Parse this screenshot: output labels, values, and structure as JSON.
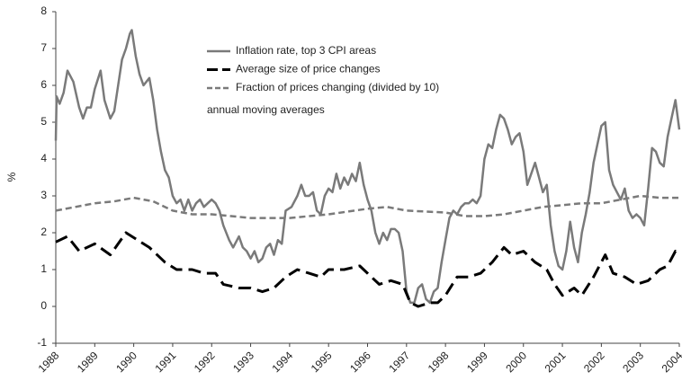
{
  "chart_data": {
    "type": "line",
    "ylabel": "%",
    "annotation": "annual moving averages",
    "xlim": [
      1988,
      2004
    ],
    "ylim": [
      -1,
      8
    ],
    "xticks": [
      1988,
      1989,
      1990,
      1991,
      1992,
      1993,
      1994,
      1995,
      1996,
      1997,
      1998,
      1999,
      2000,
      2001,
      2002,
      2003,
      2004
    ],
    "yticks": [
      -1,
      0,
      1,
      2,
      3,
      4,
      5,
      6,
      7,
      8
    ],
    "series": [
      {
        "name": "Inflation rate, top 3 CPI areas",
        "color": "#7a7a7a",
        "dash": "solid",
        "x": [
          1988.0,
          1988.02,
          1988.1,
          1988.2,
          1988.3,
          1988.45,
          1988.6,
          1988.7,
          1988.8,
          1988.9,
          1989.0,
          1989.15,
          1989.25,
          1989.4,
          1989.5,
          1989.6,
          1989.7,
          1989.8,
          1989.9,
          1989.95,
          1990.05,
          1990.15,
          1990.25,
          1990.4,
          1990.5,
          1990.6,
          1990.7,
          1990.8,
          1990.9,
          1991.0,
          1991.1,
          1991.2,
          1991.3,
          1991.4,
          1991.5,
          1991.6,
          1991.7,
          1991.8,
          1991.9,
          1992.0,
          1992.1,
          1992.2,
          1992.3,
          1992.45,
          1992.55,
          1992.7,
          1992.8,
          1992.9,
          1993.0,
          1993.1,
          1993.2,
          1993.3,
          1993.4,
          1993.5,
          1993.6,
          1993.7,
          1993.8,
          1993.9,
          1994.05,
          1994.2,
          1994.3,
          1994.4,
          1994.5,
          1994.6,
          1994.7,
          1994.8,
          1994.9,
          1995.0,
          1995.1,
          1995.2,
          1995.3,
          1995.4,
          1995.5,
          1995.6,
          1995.7,
          1995.8,
          1995.9,
          1996.0,
          1996.1,
          1996.2,
          1996.3,
          1996.4,
          1996.5,
          1996.6,
          1996.7,
          1996.8,
          1996.9,
          1997.0,
          1997.1,
          1997.2,
          1997.3,
          1997.4,
          1997.5,
          1997.6,
          1997.7,
          1997.8,
          1997.9,
          1998.0,
          1998.1,
          1998.2,
          1998.3,
          1998.4,
          1998.5,
          1998.6,
          1998.7,
          1998.8,
          1998.9,
          1999.0,
          1999.1,
          1999.2,
          1999.3,
          1999.4,
          1999.5,
          1999.6,
          1999.7,
          1999.8,
          1999.9,
          2000.0,
          2000.1,
          2000.2,
          2000.3,
          2000.4,
          2000.5,
          2000.6,
          2000.7,
          2000.8,
          2000.9,
          2001.0,
          2001.1,
          2001.2,
          2001.3,
          2001.4,
          2001.5,
          2001.6,
          2001.7,
          2001.8,
          2001.9,
          2002.0,
          2002.1,
          2002.2,
          2002.3,
          2002.4,
          2002.5,
          2002.6,
          2002.7,
          2002.8,
          2002.9,
          2003.0,
          2003.1,
          2003.2,
          2003.3,
          2003.4,
          2003.5,
          2003.6,
          2003.7,
          2003.8,
          2003.9,
          2004.0
        ],
        "values": [
          4.5,
          5.7,
          5.5,
          5.8,
          6.4,
          6.1,
          5.4,
          5.1,
          5.4,
          5.4,
          5.9,
          6.4,
          5.6,
          5.1,
          5.3,
          6.0,
          6.7,
          7.0,
          7.4,
          7.5,
          6.8,
          6.3,
          6.0,
          6.2,
          5.6,
          4.8,
          4.2,
          3.7,
          3.5,
          3.0,
          2.8,
          2.9,
          2.6,
          2.9,
          2.6,
          2.8,
          2.9,
          2.7,
          2.8,
          2.9,
          2.8,
          2.6,
          2.2,
          1.8,
          1.6,
          1.9,
          1.6,
          1.5,
          1.3,
          1.5,
          1.2,
          1.3,
          1.6,
          1.7,
          1.4,
          1.8,
          1.7,
          2.6,
          2.7,
          3.0,
          3.3,
          3.0,
          3.0,
          3.1,
          2.6,
          2.5,
          3.0,
          3.2,
          3.1,
          3.6,
          3.2,
          3.5,
          3.3,
          3.6,
          3.4,
          3.9,
          3.3,
          2.9,
          2.6,
          2.0,
          1.7,
          2.0,
          1.8,
          2.1,
          2.1,
          2.0,
          1.5,
          0.4,
          0.1,
          0.1,
          0.5,
          0.6,
          0.2,
          0.1,
          0.4,
          0.5,
          1.2,
          1.8,
          2.4,
          2.6,
          2.5,
          2.7,
          2.8,
          2.8,
          2.9,
          2.8,
          3.0,
          4.0,
          4.4,
          4.3,
          4.8,
          5.2,
          5.1,
          4.8,
          4.4,
          4.6,
          4.7,
          4.2,
          3.3,
          3.6,
          3.9,
          3.5,
          3.1,
          3.3,
          2.2,
          1.5,
          1.1,
          1.0,
          1.5,
          2.3,
          1.6,
          1.2,
          2.0,
          2.5,
          3.1,
          3.9,
          4.4,
          4.9,
          5.0,
          3.7,
          3.3,
          3.1,
          2.9,
          3.2,
          2.6,
          2.4,
          2.5,
          2.4,
          2.2,
          3.2,
          4.3,
          4.2,
          3.9,
          3.8,
          4.6,
          5.1,
          5.6,
          4.8
        ]
      },
      {
        "name": "Average size of price changes",
        "color": "#000000",
        "dash": "long",
        "x": [
          1988.0,
          1988.3,
          1988.6,
          1989.0,
          1989.4,
          1989.8,
          1990.1,
          1990.4,
          1990.8,
          1991.1,
          1991.5,
          1991.8,
          1992.1,
          1992.3,
          1992.7,
          1993.0,
          1993.3,
          1993.6,
          1993.9,
          1994.2,
          1994.5,
          1994.8,
          1995.0,
          1995.4,
          1995.8,
          1996.0,
          1996.3,
          1996.6,
          1996.9,
          1997.1,
          1997.3,
          1997.6,
          1997.8,
          1998.0,
          1998.3,
          1998.6,
          1998.9,
          1999.2,
          1999.5,
          1999.7,
          2000.0,
          2000.3,
          2000.6,
          2000.8,
          2001.0,
          2001.3,
          2001.5,
          2001.8,
          2002.1,
          2002.3,
          2002.6,
          2002.9,
          2003.2,
          2003.5,
          2003.7,
          2003.9,
          2004.0
        ],
        "values": [
          1.75,
          1.9,
          1.5,
          1.7,
          1.4,
          2.0,
          1.8,
          1.6,
          1.2,
          1.0,
          1.0,
          0.9,
          0.9,
          0.6,
          0.5,
          0.5,
          0.4,
          0.5,
          0.8,
          1.0,
          0.9,
          0.8,
          1.0,
          1.0,
          1.1,
          0.9,
          0.6,
          0.7,
          0.6,
          0.1,
          0.0,
          0.1,
          0.1,
          0.3,
          0.8,
          0.8,
          0.9,
          1.2,
          1.6,
          1.4,
          1.5,
          1.2,
          1.0,
          0.6,
          0.3,
          0.5,
          0.3,
          0.8,
          1.4,
          0.9,
          0.8,
          0.6,
          0.7,
          1.0,
          1.1,
          1.5,
          1.4
        ]
      },
      {
        "name": "Fraction of prices changing (divided by 10)",
        "color": "#7a7a7a",
        "dash": "short",
        "x": [
          1988.0,
          1988.5,
          1989.0,
          1989.5,
          1990.0,
          1990.5,
          1991.0,
          1991.5,
          1992.0,
          1992.5,
          1993.0,
          1994.0,
          1995.0,
          1996.0,
          1996.5,
          1997.0,
          1998.0,
          1998.5,
          1999.0,
          1999.5,
          2000.0,
          2000.5,
          2001.0,
          2001.5,
          2002.0,
          2002.5,
          2003.0,
          2003.5,
          2004.0
        ],
        "values": [
          2.6,
          2.7,
          2.8,
          2.85,
          2.95,
          2.85,
          2.6,
          2.5,
          2.5,
          2.45,
          2.4,
          2.4,
          2.5,
          2.65,
          2.7,
          2.6,
          2.55,
          2.45,
          2.45,
          2.5,
          2.6,
          2.7,
          2.75,
          2.8,
          2.8,
          2.9,
          3.0,
          2.95,
          2.95
        ]
      }
    ]
  }
}
